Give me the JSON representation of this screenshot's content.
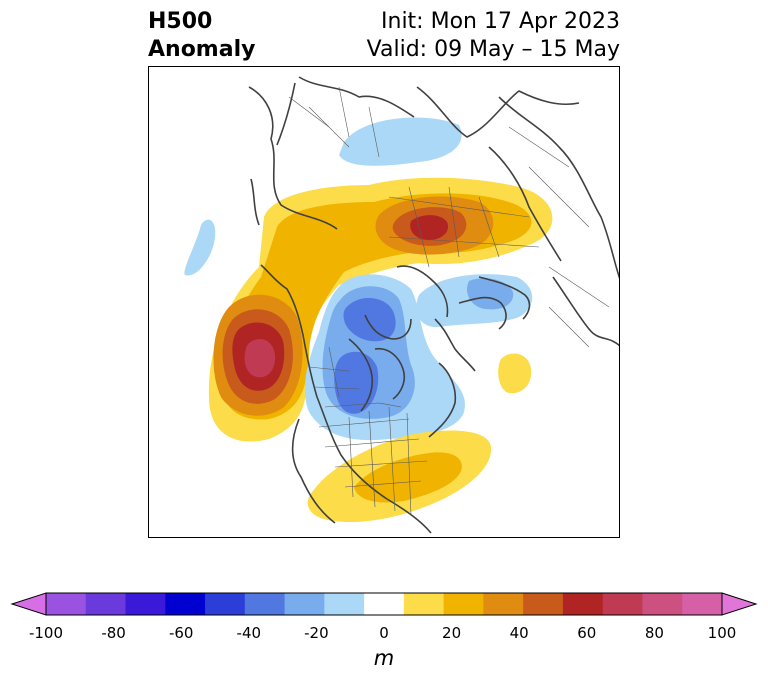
{
  "title": {
    "left_line1": "H500",
    "left_line2": "Anomaly",
    "right_line1": "Init: Mon 17 Apr 2023",
    "right_line2": "Valid: 09 May – 15 May"
  },
  "colorbar": {
    "unit": "m",
    "ticks": [
      "-100",
      "-80",
      "-60",
      "-40",
      "-20",
      "0",
      "20",
      "40",
      "60",
      "80",
      "100"
    ],
    "colors": [
      "#d66ee6",
      "#9a52e0",
      "#6a3adc",
      "#3a1ad8",
      "#0000d0",
      "#2c3ed8",
      "#5078e0",
      "#78acec",
      "#acd8f8",
      "#ffffff",
      "#fcdc48",
      "#f0b400",
      "#e08c10",
      "#c85a1c",
      "#b02424",
      "#c03a54",
      "#cc5080",
      "#d660a8",
      "#e276d8"
    ]
  },
  "map": {
    "projection": "polar-stereographic-north",
    "colors": {
      "neg_light": "#acd8f8",
      "neg_mid": "#78acec",
      "neg_strong": "#5078e0",
      "pos_light": "#fcdc48",
      "pos_mid": "#f0b400",
      "pos_orange": "#e08c10",
      "pos_burnt": "#c85a1c",
      "pos_red": "#b02424",
      "pos_pink": "#c03a54",
      "coast": "#404040"
    }
  }
}
